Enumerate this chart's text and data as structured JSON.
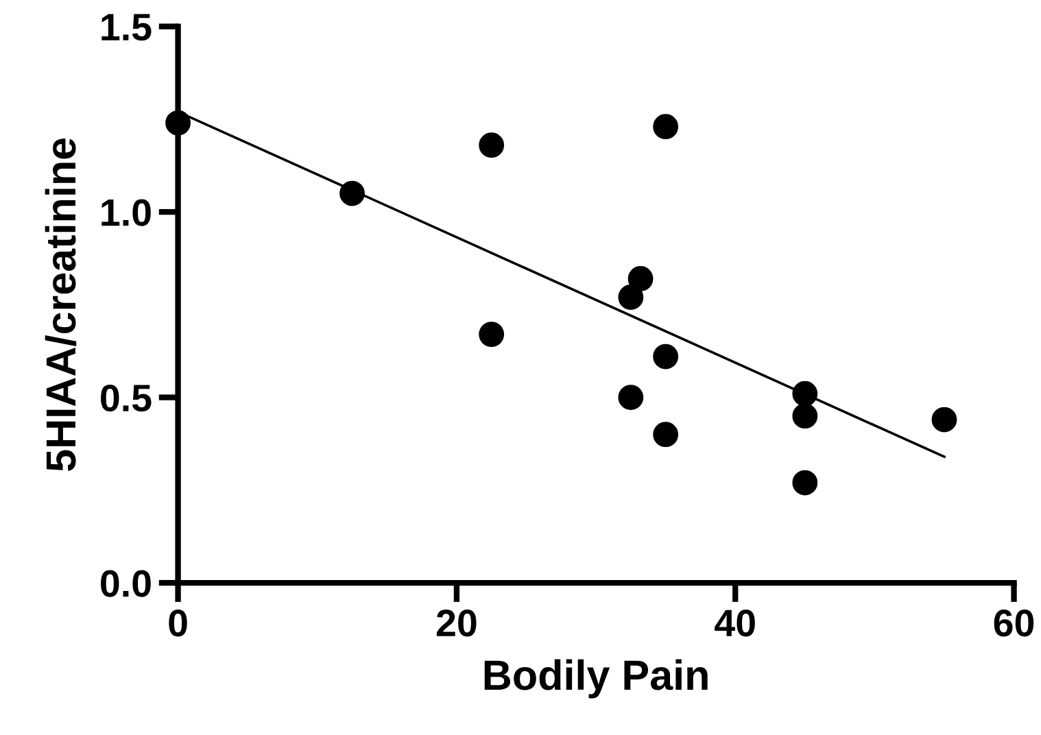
{
  "chart_data": {
    "type": "scatter",
    "xlabel": "Bodily Pain",
    "ylabel": "5HIAA/creatinine",
    "xlim": [
      0,
      60
    ],
    "xticks": [
      0,
      20,
      40,
      60
    ],
    "ylim": [
      0,
      1.5
    ],
    "yticks": [
      {
        "value": 0,
        "label": "0.0"
      },
      0.5,
      {
        "value": 1,
        "label": "1.0"
      },
      1.5
    ],
    "grid": false,
    "series": [
      {
        "marker": "circle",
        "color": "#000000",
        "x": [
          0,
          12.5,
          22.5,
          22.5,
          35,
          33.2,
          32.5,
          35,
          32.5,
          35,
          45,
          45,
          45,
          55
        ],
        "values": [
          1.24,
          1.05,
          1.18,
          0.67,
          1.23,
          0.82,
          0.77,
          0.61,
          0.5,
          0.4,
          0.51,
          0.45,
          0.27,
          0.44
        ]
      },
      {
        "type": "line",
        "color": "#000000",
        "line_style": "solid",
        "x": [
          0,
          55
        ],
        "values": [
          1.27,
          0.34
        ]
      }
    ]
  }
}
